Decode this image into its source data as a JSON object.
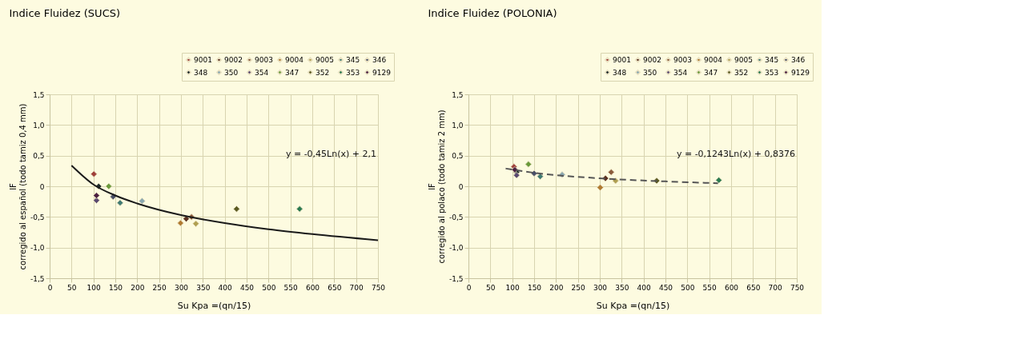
{
  "chart_data": [
    {
      "type": "scatter",
      "title": "Indice Fluidez (SUCS)",
      "xlabel": "Su Kpa =(qn/15)",
      "ylabel": "IF\ncorregido al español (todo tamiz 0,4 mm)",
      "xlim": [
        0,
        750
      ],
      "xticks": [
        0,
        50,
        100,
        150,
        200,
        250,
        300,
        350,
        400,
        450,
        500,
        550,
        600,
        650,
        700,
        750
      ],
      "ylim": [
        -1.5,
        1.5
      ],
      "yticks": [
        {
          "value": -1.5,
          "label": "-1,5"
        },
        {
          "value": -1.0,
          "label": "-1,0"
        },
        {
          "value": -0.5,
          "label": "-0,5"
        },
        0,
        {
          "value": 0.5,
          "label": "0,5"
        },
        {
          "value": 1.0,
          "label": "1,0"
        },
        {
          "value": 1.5,
          "label": "1,5"
        }
      ],
      "grid": true,
      "legend": "top right",
      "marker": "diamond",
      "series": [
        {
          "name": "9001",
          "color": "#a0403a",
          "x": [
            101
          ],
          "values": [
            0.2
          ]
        },
        {
          "name": "9002",
          "color": "#5a3020",
          "x": [
            312
          ],
          "values": [
            -0.53
          ]
        },
        {
          "name": "9003",
          "color": "#8a5a3a",
          "x": [
            324
          ],
          "values": [
            -0.5
          ]
        },
        {
          "name": "9004",
          "color": "#b07a30",
          "x": [
            299
          ],
          "values": [
            -0.6
          ]
        },
        {
          "name": "9005",
          "color": "#b0a050",
          "x": [
            334
          ],
          "values": [
            -0.61
          ]
        },
        {
          "name": "345",
          "color": "#3f7a72",
          "x": [
            161
          ],
          "values": [
            -0.27
          ]
        },
        {
          "name": "346",
          "color": "#4a5068",
          "x": [
            145
          ],
          "values": [
            -0.17
          ]
        },
        {
          "name": "348",
          "color": "#1e2a2a",
          "x": [
            112
          ],
          "values": [
            0.0
          ]
        },
        {
          "name": "350",
          "color": "#8aa8b0",
          "x": [
            211
          ],
          "values": [
            -0.24
          ]
        },
        {
          "name": "354",
          "color": "#5a4a70",
          "x": [
            107
          ],
          "values": [
            -0.23
          ]
        },
        {
          "name": "347",
          "color": "#6a9a3a",
          "x": [
            135
          ],
          "values": [
            0.0
          ]
        },
        {
          "name": "352",
          "color": "#5a5a20",
          "x": [
            427
          ],
          "values": [
            -0.37
          ]
        },
        {
          "name": "353",
          "color": "#2a7a50",
          "x": [
            571
          ],
          "values": [
            -0.37
          ]
        },
        {
          "name": "9129",
          "color": "#4a1e40",
          "x": [
            107
          ],
          "values": [
            -0.15
          ]
        },
        {
          "type": "line",
          "color": "#1a1a1a",
          "line_style": "solid",
          "marker": "none",
          "x": [
            50,
            100,
            150,
            200,
            300,
            400,
            500,
            600,
            750
          ],
          "values": [
            0.34,
            0.03,
            -0.15,
            -0.28,
            -0.47,
            -0.6,
            -0.7,
            -0.78,
            -0.88
          ]
        }
      ],
      "annotations": [
        "y = -0,45Ln(x) + 2,1"
      ]
    },
    {
      "type": "scatter",
      "title": "Indice Fluidez (POLONIA)",
      "xlabel": "Su Kpa =(qn/15)",
      "ylabel": "IF\ncorregido al polaco (todo tamiz 2 mm)",
      "xlim": [
        0,
        750
      ],
      "xticks": [
        0,
        50,
        100,
        150,
        200,
        250,
        300,
        350,
        400,
        450,
        500,
        550,
        600,
        650,
        700,
        750
      ],
      "ylim": [
        -1.5,
        1.5
      ],
      "yticks": [
        {
          "value": -1.5,
          "label": "-1,5"
        },
        {
          "value": -1.0,
          "label": "-1,0"
        },
        {
          "value": -0.5,
          "label": "-0,5"
        },
        0,
        {
          "value": 0.5,
          "label": "0,5"
        },
        {
          "value": 1.0,
          "label": "1,0"
        },
        {
          "value": 1.5,
          "label": "1,5"
        }
      ],
      "grid": true,
      "legend": "top right",
      "marker": "diamond",
      "series": [
        {
          "name": "9001",
          "color": "#a0403a",
          "x": [
            104
          ],
          "values": [
            0.32
          ]
        },
        {
          "name": "9002",
          "color": "#5a3020",
          "x": [
            313
          ],
          "values": [
            0.13
          ]
        },
        {
          "name": "9003",
          "color": "#8a5a3a",
          "x": [
            326
          ],
          "values": [
            0.23
          ]
        },
        {
          "name": "9004",
          "color": "#b07a30",
          "x": [
            301
          ],
          "values": [
            -0.02
          ]
        },
        {
          "name": "9005",
          "color": "#b0a050",
          "x": [
            336
          ],
          "values": [
            0.09
          ]
        },
        {
          "name": "345",
          "color": "#3f7a72",
          "x": [
            164
          ],
          "values": [
            0.16
          ]
        },
        {
          "name": "346",
          "color": "#4a5068",
          "x": [
            150
          ],
          "values": [
            0.21
          ]
        },
        {
          "name": "348",
          "color": "#1e2a2a",
          "x": [
            110
          ],
          "values": [
            0.23
          ]
        },
        {
          "name": "350",
          "color": "#8aa8b0",
          "x": [
            214
          ],
          "values": [
            0.19
          ]
        },
        {
          "name": "354",
          "color": "#5a4a70",
          "x": [
            110
          ],
          "values": [
            0.18
          ]
        },
        {
          "name": "347",
          "color": "#6a9a3a",
          "x": [
            137
          ],
          "values": [
            0.36
          ]
        },
        {
          "name": "352",
          "color": "#5a5a20",
          "x": [
            430
          ],
          "values": [
            0.09
          ]
        },
        {
          "name": "353",
          "color": "#2a7a50",
          "x": [
            572
          ],
          "values": [
            0.1
          ]
        },
        {
          "name": "9129",
          "color": "#4a1e40",
          "x": [
            106
          ],
          "values": [
            0.27
          ]
        },
        {
          "type": "line",
          "color": "#555555",
          "line_style": "dashed",
          "marker": "none",
          "x": [
            85,
            150,
            300,
            450,
            570
          ],
          "values": [
            0.29,
            0.22,
            0.13,
            0.08,
            0.05
          ]
        }
      ],
      "annotations": [
        "y = -0,1243Ln(x) + 0,8376"
      ]
    }
  ]
}
